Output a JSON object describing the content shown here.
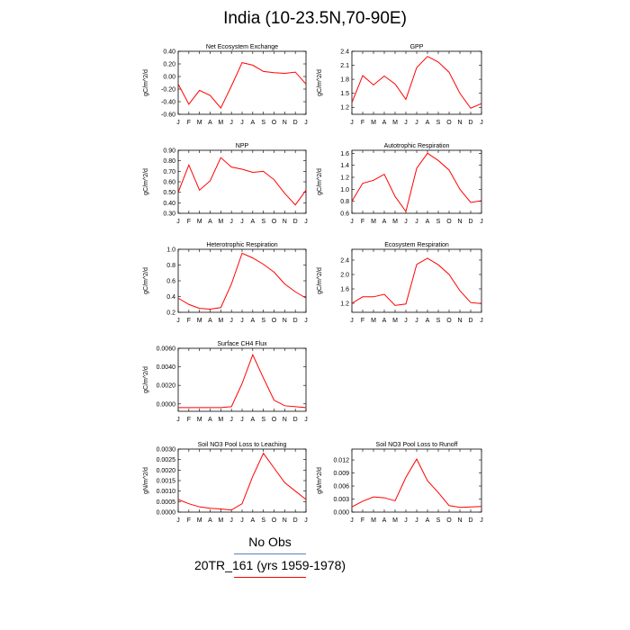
{
  "title": "India (10-23.5N,70-90E)",
  "months": [
    "J",
    "F",
    "M",
    "A",
    "M",
    "J",
    "J",
    "A",
    "S",
    "O",
    "N",
    "D",
    "J"
  ],
  "legend": [
    {
      "label": "No Obs",
      "color": "#5b7fc4"
    },
    {
      "label": "20TR_161 (yrs 1959-1978)",
      "color": "#ff0000"
    }
  ],
  "series_color": "#ff0000",
  "chart_data": [
    {
      "type": "line",
      "title": "Net Ecosystem Exchange",
      "ylabel": "gC/m^2/d",
      "ylim": [
        -0.6,
        0.4
      ],
      "yticks": [
        -0.6,
        -0.4,
        -0.2,
        0.0,
        0.2,
        0.4
      ],
      "ytick_labels": [
        "-0.60",
        "-0.40",
        "-0.20",
        "0.00",
        "0.20",
        "0.40"
      ],
      "values": [
        -0.12,
        -0.44,
        -0.22,
        -0.3,
        -0.5,
        -0.15,
        0.22,
        0.18,
        0.08,
        0.06,
        0.05,
        0.07,
        -0.12
      ]
    },
    {
      "type": "line",
      "title": "GPP",
      "ylabel": "gC/m^2/d",
      "ylim": [
        1.05,
        2.4
      ],
      "yticks": [
        1.2,
        1.5,
        1.8,
        2.1,
        2.4
      ],
      "ytick_labels": [
        "1.2",
        "1.5",
        "1.8",
        "2.1",
        "2.4"
      ],
      "values": [
        1.3,
        1.88,
        1.68,
        1.87,
        1.7,
        1.37,
        2.05,
        2.29,
        2.17,
        1.95,
        1.5,
        1.18,
        1.28
      ]
    },
    {
      "type": "line",
      "title": "NPP",
      "ylabel": "gC/m^2/d",
      "ylim": [
        0.3,
        0.9
      ],
      "yticks": [
        0.3,
        0.4,
        0.5,
        0.6,
        0.7,
        0.8,
        0.9
      ],
      "ytick_labels": [
        "0.30",
        "0.40",
        "0.50",
        "0.60",
        "0.70",
        "0.80",
        "0.90"
      ],
      "values": [
        0.5,
        0.76,
        0.52,
        0.61,
        0.83,
        0.74,
        0.72,
        0.69,
        0.7,
        0.62,
        0.49,
        0.38,
        0.52
      ]
    },
    {
      "type": "line",
      "title": "Autotrophic Respiration",
      "ylabel": "gC/m^2/d",
      "ylim": [
        0.6,
        1.65
      ],
      "yticks": [
        0.6,
        0.8,
        1.0,
        1.2,
        1.4,
        1.6
      ],
      "ytick_labels": [
        "0.6",
        "0.8",
        "1.0",
        "1.2",
        "1.4",
        "1.6"
      ],
      "values": [
        0.8,
        1.1,
        1.15,
        1.25,
        0.88,
        0.63,
        1.35,
        1.6,
        1.48,
        1.32,
        1.0,
        0.78,
        0.81
      ]
    },
    {
      "type": "line",
      "title": "Heterotrophic Respiration",
      "ylabel": "gC/m^2/d",
      "ylim": [
        0.2,
        1.0
      ],
      "yticks": [
        0.2,
        0.4,
        0.6,
        0.8,
        1.0
      ],
      "ytick_labels": [
        "0.2",
        "0.4",
        "0.6",
        "0.8",
        "1.0"
      ],
      "values": [
        0.38,
        0.3,
        0.25,
        0.24,
        0.26,
        0.56,
        0.95,
        0.89,
        0.81,
        0.71,
        0.56,
        0.46,
        0.38
      ]
    },
    {
      "type": "line",
      "title": "Ecosystem Respiration",
      "ylabel": "gC/m^2/d",
      "ylim": [
        0.95,
        2.7
      ],
      "yticks": [
        1.2,
        1.6,
        2.0,
        2.4
      ],
      "ytick_labels": [
        "1.2",
        "1.6",
        "2.0",
        "2.4"
      ],
      "values": [
        1.2,
        1.38,
        1.38,
        1.45,
        1.14,
        1.18,
        2.28,
        2.45,
        2.27,
        2.0,
        1.55,
        1.22,
        1.19
      ]
    },
    {
      "type": "line",
      "title": "Surface CH4 Flux",
      "ylabel": "gC/m^2/d",
      "ylim": [
        -0.0008,
        0.006
      ],
      "yticks": [
        0.0,
        0.002,
        0.004,
        0.006
      ],
      "ytick_labels": [
        "0.0000",
        "0.0020",
        "0.0040",
        "0.0060"
      ],
      "values": [
        -0.0004,
        -0.0004,
        -0.0004,
        -0.0004,
        -0.0004,
        -0.0003,
        0.0022,
        0.0053,
        0.0028,
        0.0004,
        -0.0002,
        -0.0003,
        -0.0004
      ]
    },
    {
      "type": "line",
      "title": "Soil NO3 Pool Loss to Leaching",
      "ylabel": "gN/m^2/d",
      "ylim": [
        0.0,
        0.003
      ],
      "yticks": [
        0.0,
        0.0005,
        0.001,
        0.0015,
        0.002,
        0.0025,
        0.003
      ],
      "ytick_labels": [
        "0.0000",
        "0.0005",
        "0.0010",
        "0.0015",
        "0.0020",
        "0.0025",
        "0.0030"
      ],
      "values": [
        0.0006,
        0.0004,
        0.00025,
        0.00018,
        0.00015,
        0.0001,
        0.0004,
        0.0017,
        0.0028,
        0.0021,
        0.0014,
        0.001,
        0.0006
      ]
    },
    {
      "type": "line",
      "title": "Soil NO3 Pool Loss to Runoff",
      "ylabel": "gN/m^2/d",
      "ylim": [
        0.0,
        0.0145
      ],
      "yticks": [
        0.0,
        0.003,
        0.006,
        0.009,
        0.012
      ],
      "ytick_labels": [
        "0.000",
        "0.003",
        "0.006",
        "0.009",
        "0.012"
      ],
      "values": [
        0.0012,
        0.0025,
        0.0035,
        0.0033,
        0.0026,
        0.008,
        0.0122,
        0.0072,
        0.0045,
        0.0015,
        0.0011,
        0.0012,
        0.0013
      ]
    }
  ]
}
